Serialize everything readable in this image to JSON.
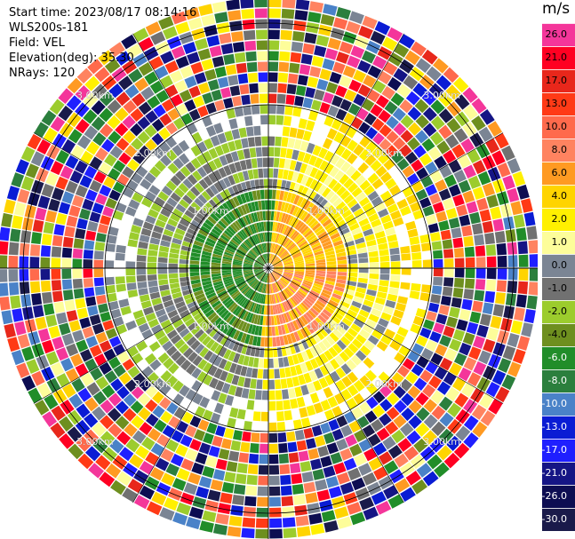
{
  "header": {
    "start_time": "Start time: 2023/08/17 08:14:16",
    "instrument": "WLS200s-181",
    "field": "Field: VEL",
    "elevation": "Elevation(deg): 35.30",
    "nrays": "NRays: 120"
  },
  "colorbar": {
    "unit": "m/s",
    "segments": [
      {
        "label": "26.0",
        "color": "#f4369a"
      },
      {
        "label": "21.0",
        "color": "#ff0022"
      },
      {
        "label": "17.0",
        "color": "#e8271b"
      },
      {
        "label": "13.0",
        "color": "#ff3a16"
      },
      {
        "label": "10.0",
        "color": "#ff6a4c"
      },
      {
        "label": "8.0",
        "color": "#ff8360"
      },
      {
        "label": "6.0",
        "color": "#ff9a22"
      },
      {
        "label": "4.0",
        "color": "#ffd400"
      },
      {
        "label": "2.0",
        "color": "#fff000"
      },
      {
        "label": "1.0",
        "color": "#fdfd9a"
      },
      {
        "label": "0.0",
        "color": "#7b8594"
      },
      {
        "label": "-1.0",
        "color": "#717171"
      },
      {
        "label": "-2.0",
        "color": "#9ccc2d"
      },
      {
        "label": "-4.0",
        "color": "#6e8f1f"
      },
      {
        "label": "-6.0",
        "color": "#218d29"
      },
      {
        "label": "-8.0",
        "color": "#2b7f3d"
      },
      {
        "label": "-10.0",
        "color": "#4a82c8"
      },
      {
        "label": "-13.0",
        "color": "#0a1cd4"
      },
      {
        "label": "-17.0",
        "color": "#1f1fff"
      },
      {
        "label": "-21.0",
        "color": "#151585"
      },
      {
        "label": "-26.0",
        "color": "#0d0d52"
      },
      {
        "label": "-30.0",
        "color": "#1a1a4a"
      }
    ]
  },
  "chart_data": {
    "type": "heatmap",
    "projection": "polar-ppi",
    "field": "VEL",
    "unit": "m/s",
    "rays": 120,
    "range_rings_km": [
      1.0,
      2.0,
      3.0
    ],
    "ring_label": "km",
    "max_range_km": 3.3,
    "grid_spokes_deg": [
      0,
      30,
      60,
      90,
      120,
      150,
      180,
      210,
      240,
      270,
      300,
      330
    ],
    "pattern": {
      "inner_radius_km": 0.9,
      "inner_toward_color": "#6e8f1f",
      "inner_away_color": "#fff000",
      "mid_radius_km": 1.6,
      "noise_start_km": 2.0
    }
  }
}
